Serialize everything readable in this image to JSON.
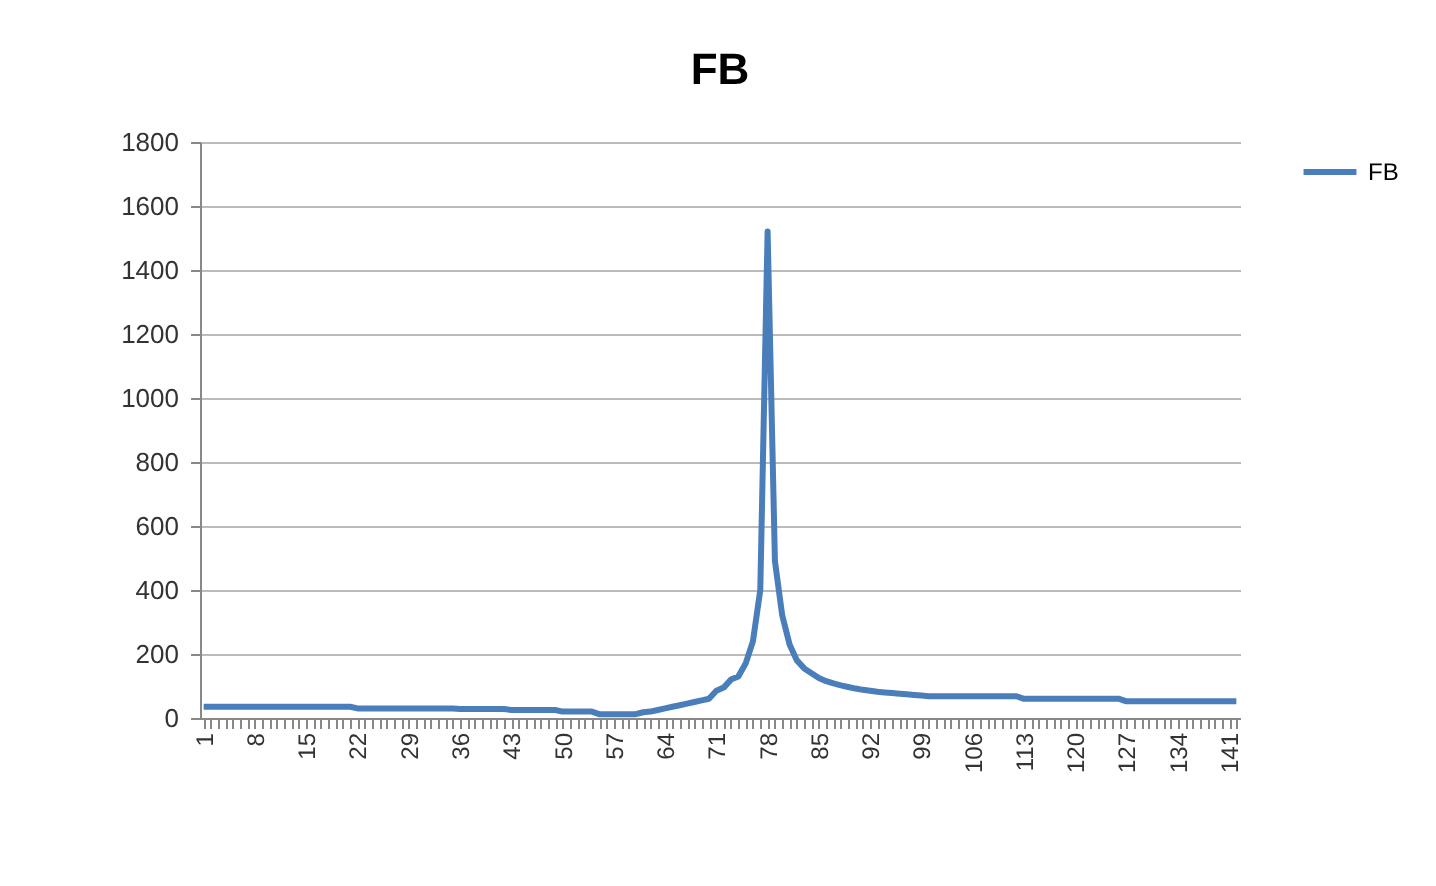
{
  "chart_data": {
    "type": "line",
    "title": "FB",
    "categories": [
      "1",
      null,
      null,
      null,
      null,
      null,
      null,
      "8",
      null,
      null,
      null,
      null,
      null,
      null,
      "15",
      null,
      null,
      null,
      null,
      null,
      null,
      "22",
      null,
      null,
      null,
      null,
      null,
      null,
      "29",
      null,
      null,
      null,
      null,
      null,
      null,
      "36",
      null,
      null,
      null,
      null,
      null,
      null,
      "43",
      null,
      null,
      null,
      null,
      null,
      null,
      "50",
      null,
      null,
      null,
      null,
      null,
      null,
      "57",
      null,
      null,
      null,
      null,
      null,
      null,
      "64",
      null,
      null,
      null,
      null,
      null,
      null,
      "71",
      null,
      null,
      null,
      null,
      null,
      null,
      "78",
      null,
      null,
      null,
      null,
      null,
      null,
      "85",
      null,
      null,
      null,
      null,
      null,
      null,
      "92",
      null,
      null,
      null,
      null,
      null,
      null,
      "99",
      null,
      null,
      null,
      null,
      null,
      null,
      "106",
      null,
      null,
      null,
      null,
      null,
      null,
      "113",
      null,
      null,
      null,
      null,
      null,
      null,
      "120",
      null,
      null,
      null,
      null,
      null,
      null,
      "127",
      null,
      null,
      null,
      null,
      null,
      null,
      "134",
      null,
      null,
      null,
      null,
      null,
      null,
      "141",
      null
    ],
    "series": [
      {
        "name": "FB",
        "color": "#4a7ebb",
        "values": [
          35,
          35,
          35,
          35,
          35,
          35,
          35,
          35,
          35,
          35,
          35,
          35,
          35,
          35,
          35,
          35,
          35,
          35,
          35,
          35,
          35,
          30,
          30,
          30,
          30,
          30,
          30,
          30,
          30,
          30,
          30,
          30,
          30,
          30,
          30,
          28,
          28,
          28,
          28,
          28,
          28,
          28,
          25,
          25,
          25,
          25,
          25,
          25,
          25,
          20,
          20,
          20,
          20,
          20,
          12,
          12,
          12,
          12,
          12,
          12,
          18,
          20,
          25,
          30,
          35,
          40,
          45,
          50,
          55,
          60,
          85,
          95,
          120,
          130,
          170,
          240,
          400,
          1520,
          490,
          320,
          230,
          180,
          155,
          140,
          125,
          115,
          108,
          102,
          97,
          92,
          88,
          85,
          82,
          80,
          78,
          76,
          74,
          72,
          70,
          68,
          68,
          68,
          68,
          68,
          68,
          68,
          68,
          68,
          68,
          68,
          68,
          68,
          60,
          60,
          60,
          60,
          60,
          60,
          60,
          60,
          60,
          60,
          60,
          60,
          60,
          60,
          52,
          52,
          52,
          52,
          52,
          52,
          52,
          52,
          52,
          52,
          52,
          52,
          52,
          52,
          52,
          52
        ]
      }
    ],
    "ylim": [
      0,
      1800
    ],
    "yticks": [
      0,
      200,
      400,
      600,
      800,
      1000,
      1200,
      1400,
      1600,
      1800
    ],
    "grid": "y",
    "legend": "right"
  }
}
